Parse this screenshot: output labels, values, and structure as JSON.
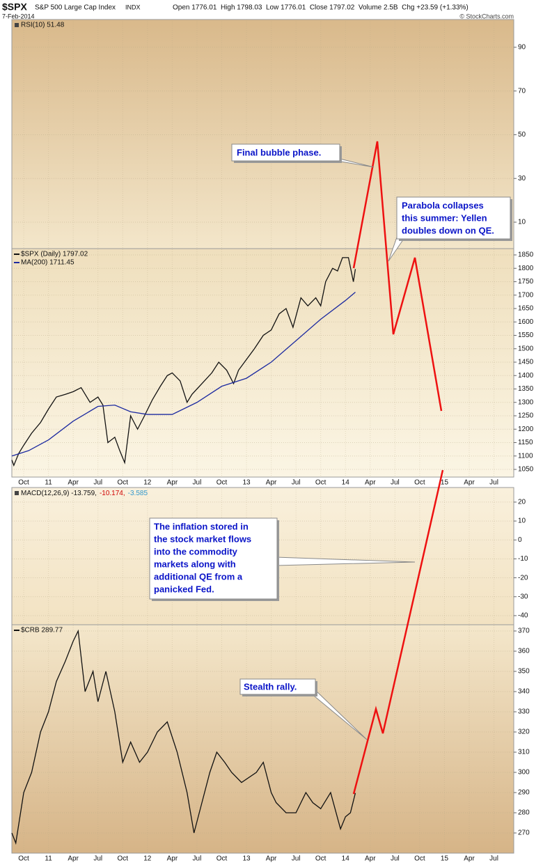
{
  "header": {
    "symbol": "$SPX",
    "name": "S&P 500 Large Cap Index",
    "exchange": "INDX",
    "date": "7-Feb-2014",
    "quote": "Open 1776.01  High 1798.03  Low 1776.01  Close 1797.02  Volume 2.5B  Chg +23.59 (+1.33%)",
    "credit": "© StockCharts.com"
  },
  "chart_data": [
    {
      "type": "line",
      "title": "RSI(10) 51.48",
      "ylim": [
        -2.1,
        102.7
      ],
      "yticks": [
        10,
        30,
        50,
        70,
        90
      ],
      "grid": true,
      "series": []
    },
    {
      "type": "line",
      "xlim": [
        2010.63,
        2015.7
      ],
      "ylim": [
        1021.4,
        1873.4
      ],
      "xticks": [
        {
          "value": 2010.75,
          "label": "Oct"
        },
        {
          "value": 2011,
          "label": "11"
        },
        {
          "value": 2011.25,
          "label": "Apr"
        },
        {
          "value": 2011.5,
          "label": "Jul"
        },
        {
          "value": 2011.75,
          "label": "Oct"
        },
        {
          "value": 2012,
          "label": "12"
        },
        {
          "value": 2012.25,
          "label": "Apr"
        },
        {
          "value": 2012.5,
          "label": "Jul"
        },
        {
          "value": 2012.75,
          "label": "Oct"
        },
        {
          "value": 2013,
          "label": "13"
        },
        {
          "value": 2013.25,
          "label": "Apr"
        },
        {
          "value": 2013.5,
          "label": "Jul"
        },
        {
          "value": 2013.75,
          "label": "Oct"
        },
        {
          "value": 2014,
          "label": "14"
        },
        {
          "value": 2014.25,
          "label": "Apr"
        },
        {
          "value": 2014.5,
          "label": "Jul"
        },
        {
          "value": 2014.75,
          "label": "Oct"
        },
        {
          "value": 2015,
          "label": "15"
        },
        {
          "value": 2015.25,
          "label": "Apr"
        },
        {
          "value": 2015.5,
          "label": "Jul"
        }
      ],
      "yticks": [
        1050,
        1100,
        1150,
        1200,
        1250,
        1300,
        1350,
        1400,
        1450,
        1500,
        1550,
        1600,
        1650,
        1700,
        1750,
        1800,
        1850
      ],
      "grid": true,
      "series": [
        {
          "name": "$SPX (Daily) 1797.02",
          "color": "#111111",
          "x": [
            2010.63,
            2010.65,
            2010.7,
            2010.75,
            2010.83,
            2010.92,
            2011.0,
            2011.08,
            2011.17,
            2011.25,
            2011.33,
            2011.42,
            2011.5,
            2011.55,
            2011.6,
            2011.67,
            2011.72,
            2011.77,
            2011.83,
            2011.9,
            2011.97,
            2012.05,
            2012.13,
            2012.2,
            2012.25,
            2012.33,
            2012.4,
            2012.45,
            2012.55,
            2012.65,
            2012.72,
            2012.8,
            2012.87,
            2012.92,
            2013.0,
            2013.08,
            2013.17,
            2013.25,
            2013.33,
            2013.4,
            2013.47,
            2013.55,
            2013.62,
            2013.7,
            2013.75,
            2013.8,
            2013.87,
            2013.92,
            2013.97,
            2014.03,
            2014.08,
            2014.1
          ],
          "values": [
            1085,
            1065,
            1110,
            1140,
            1185,
            1225,
            1275,
            1320,
            1330,
            1340,
            1355,
            1300,
            1320,
            1290,
            1150,
            1170,
            1120,
            1075,
            1250,
            1200,
            1250,
            1310,
            1360,
            1400,
            1410,
            1380,
            1300,
            1330,
            1370,
            1410,
            1450,
            1420,
            1370,
            1420,
            1460,
            1500,
            1550,
            1570,
            1630,
            1650,
            1580,
            1690,
            1660,
            1690,
            1660,
            1750,
            1800,
            1790,
            1840,
            1840,
            1750,
            1797
          ]
        },
        {
          "name": "MA(200) 1711.45",
          "color": "#1c2aa0",
          "x": [
            2010.63,
            2010.8,
            2011.0,
            2011.25,
            2011.5,
            2011.67,
            2011.83,
            2012.0,
            2012.25,
            2012.5,
            2012.75,
            2013.0,
            2013.25,
            2013.5,
            2013.75,
            2014.0,
            2014.1
          ],
          "values": [
            1100,
            1120,
            1160,
            1230,
            1285,
            1290,
            1265,
            1255,
            1255,
            1300,
            1360,
            1390,
            1450,
            1530,
            1610,
            1680,
            1711
          ]
        }
      ]
    },
    {
      "type": "line",
      "title_parts": [
        {
          "text": "MACD(12,26,9) -13.759,",
          "color": "#111111"
        },
        {
          "text": "-10.174,",
          "color": "#d00000"
        },
        {
          "text": "-3.585",
          "color": "#3399cc"
        }
      ],
      "ylim": [
        -44.8,
        27.7
      ],
      "yticks": [
        20,
        10,
        0,
        -10,
        -20,
        -30,
        -40
      ],
      "grid": true,
      "series": []
    },
    {
      "type": "line",
      "xlim": [
        2010.63,
        2015.7
      ],
      "ylim": [
        260,
        373.1
      ],
      "xticks": [
        {
          "value": 2010.75,
          "label": "Oct"
        },
        {
          "value": 2011,
          "label": "11"
        },
        {
          "value": 2011.25,
          "label": "Apr"
        },
        {
          "value": 2011.5,
          "label": "Jul"
        },
        {
          "value": 2011.75,
          "label": "Oct"
        },
        {
          "value": 2012,
          "label": "12"
        },
        {
          "value": 2012.25,
          "label": "Apr"
        },
        {
          "value": 2012.5,
          "label": "Jul"
        },
        {
          "value": 2012.75,
          "label": "Oct"
        },
        {
          "value": 2013,
          "label": "13"
        },
        {
          "value": 2013.25,
          "label": "Apr"
        },
        {
          "value": 2013.5,
          "label": "Jul"
        },
        {
          "value": 2013.75,
          "label": "Oct"
        },
        {
          "value": 2014,
          "label": "14"
        },
        {
          "value": 2014.25,
          "label": "Apr"
        },
        {
          "value": 2014.5,
          "label": "Jul"
        },
        {
          "value": 2014.75,
          "label": "Oct"
        },
        {
          "value": 2015,
          "label": "15"
        },
        {
          "value": 2015.25,
          "label": "Apr"
        },
        {
          "value": 2015.5,
          "label": "Jul"
        }
      ],
      "yticks": [
        270,
        280,
        290,
        300,
        310,
        320,
        330,
        340,
        350,
        360,
        370
      ],
      "grid": true,
      "series": [
        {
          "name": "$CRB 289.77",
          "color": "#111111",
          "x": [
            2010.63,
            2010.67,
            2010.75,
            2010.83,
            2010.92,
            2011.0,
            2011.08,
            2011.17,
            2011.25,
            2011.3,
            2011.37,
            2011.45,
            2011.5,
            2011.58,
            2011.67,
            2011.75,
            2011.83,
            2011.92,
            2012.0,
            2012.1,
            2012.2,
            2012.3,
            2012.4,
            2012.47,
            2012.55,
            2012.63,
            2012.7,
            2012.78,
            2012.85,
            2012.95,
            2013.1,
            2013.17,
            2013.25,
            2013.3,
            2013.4,
            2013.5,
            2013.6,
            2013.67,
            2013.75,
            2013.85,
            2013.95,
            2014.0,
            2014.05,
            2014.1
          ],
          "values": [
            270,
            265,
            290,
            300,
            320,
            330,
            345,
            355,
            365,
            370,
            340,
            350,
            335,
            350,
            330,
            305,
            315,
            305,
            310,
            320,
            325,
            310,
            290,
            270,
            285,
            300,
            310,
            305,
            300,
            295,
            300,
            305,
            290,
            285,
            280,
            280,
            290,
            285,
            282,
            290,
            272,
            278,
            280,
            289.77
          ]
        }
      ]
    }
  ],
  "annotations": [
    {
      "lines": [
        "Final bubble phase."
      ]
    },
    {
      "lines": [
        "Parabola collapses",
        "this summer: Yellen",
        "doubles down on QE."
      ]
    },
    {
      "lines": [
        "The inflation stored in",
        "the stock market flows",
        "into the commodity",
        "markets along with",
        "additional QE from a",
        "panicked Fed."
      ]
    },
    {
      "lines": [
        "Stealth rally."
      ]
    }
  ]
}
